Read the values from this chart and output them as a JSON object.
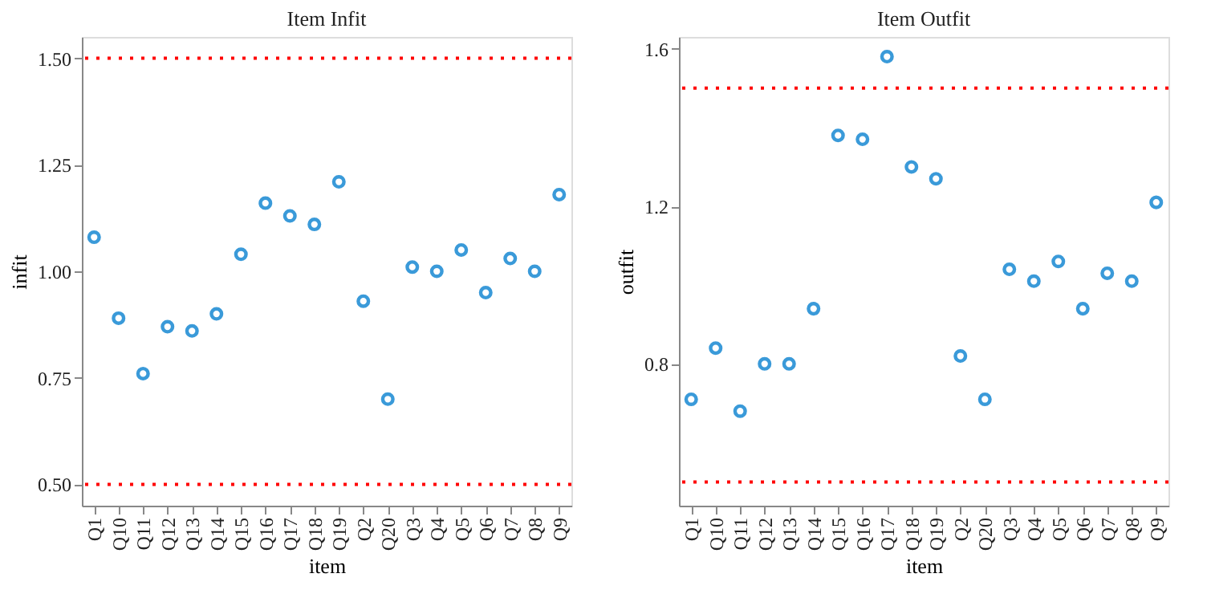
{
  "chart_data": [
    {
      "type": "scatter",
      "title": "Item Infit",
      "xlabel": "item",
      "ylabel": "infit",
      "marker": "circle",
      "grid": false,
      "categories": [
        "Q1",
        "Q10",
        "Q11",
        "Q12",
        "Q13",
        "Q14",
        "Q15",
        "Q16",
        "Q17",
        "Q18",
        "Q19",
        "Q2",
        "Q20",
        "Q3",
        "Q4",
        "Q5",
        "Q6",
        "Q7",
        "Q8",
        "Q9"
      ],
      "series": [
        {
          "color": "#3a9ad9",
          "values": [
            1.08,
            0.89,
            0.76,
            0.87,
            0.86,
            0.9,
            1.04,
            1.16,
            1.13,
            1.11,
            1.21,
            0.93,
            0.7,
            1.01,
            1.0,
            1.05,
            0.95,
            1.03,
            1.0,
            1.18
          ]
        }
      ],
      "ylim": [
        0.45,
        1.55
      ],
      "yticks": [
        {
          "value": 0.5,
          "label": "0.50"
        },
        {
          "value": 0.75,
          "label": "0.75"
        },
        {
          "value": 1.0,
          "label": "1.00"
        },
        {
          "value": 1.25,
          "label": "1.25"
        },
        {
          "value": 1.5,
          "label": "1.50"
        }
      ],
      "ref_lines": [
        {
          "axis": "y",
          "value": 0.5,
          "color": "#ff0000",
          "line_style": "dotted"
        },
        {
          "axis": "y",
          "value": 1.5,
          "color": "#ff0000",
          "line_style": "dotted"
        }
      ]
    },
    {
      "type": "scatter",
      "title": "Item Outfit",
      "xlabel": "item",
      "ylabel": "outfit",
      "marker": "circle",
      "grid": false,
      "categories": [
        "Q1",
        "Q10",
        "Q11",
        "Q12",
        "Q13",
        "Q14",
        "Q15",
        "Q16",
        "Q17",
        "Q18",
        "Q19",
        "Q2",
        "Q20",
        "Q3",
        "Q4",
        "Q5",
        "Q6",
        "Q7",
        "Q8",
        "Q9"
      ],
      "series": [
        {
          "color": "#3a9ad9",
          "values": [
            0.71,
            0.84,
            0.68,
            0.8,
            0.8,
            0.94,
            1.38,
            1.37,
            1.58,
            1.3,
            1.27,
            0.82,
            0.71,
            1.04,
            1.01,
            1.06,
            0.94,
            1.03,
            1.01,
            1.21
          ]
        }
      ],
      "ylim": [
        0.44,
        1.63
      ],
      "yticks": [
        0.8,
        1.2,
        1.6
      ],
      "ref_lines": [
        {
          "axis": "y",
          "value": 0.5,
          "color": "#ff0000",
          "line_style": "dotted"
        },
        {
          "axis": "y",
          "value": 1.5,
          "color": "#ff0000",
          "line_style": "dotted"
        }
      ]
    }
  ]
}
